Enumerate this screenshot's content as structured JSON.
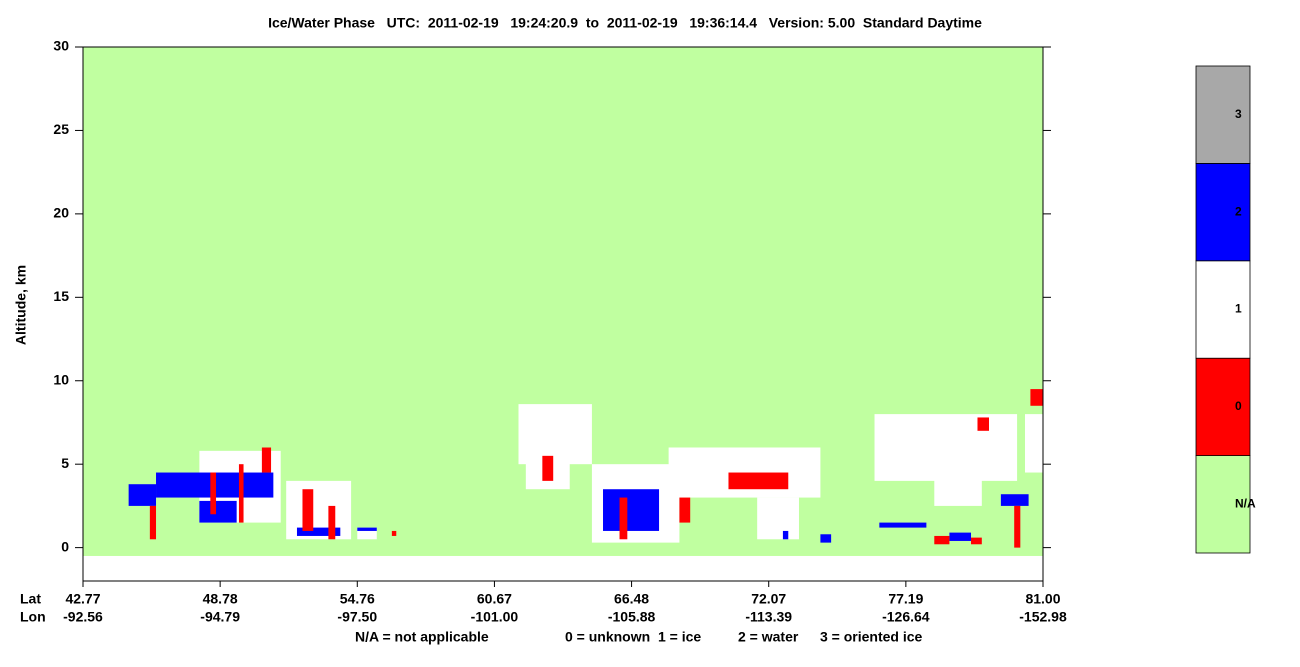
{
  "chart_data": {
    "type": "curtain",
    "title": "Ice/Water Phase   UTC:  2011-02-19   19:24:20.9  to  2011-02-19   19:36:14.4   Version: 5.00  Standard Daytime",
    "y_label": "Altitude, km",
    "ylim": [
      -2,
      30
    ],
    "yticks": [
      0,
      5,
      10,
      15,
      20,
      25,
      30
    ],
    "x_row_labels": [
      "Lat",
      "Lon"
    ],
    "x_tick_lat": [
      "42.77",
      "48.78",
      "54.76",
      "60.67",
      "66.48",
      "72.07",
      "77.19",
      "81.00"
    ],
    "x_tick_lon": [
      "-92.56",
      "-94.79",
      "-97.50",
      "-101.00",
      "-105.88",
      "-113.39",
      "-126.64",
      "-152.98"
    ],
    "na_region": {
      "bottom": -0.5,
      "top": 30
    },
    "colorbar": {
      "ticks": [
        "N/A",
        0,
        1,
        2,
        3
      ],
      "colors": [
        "#c0ffa0",
        "#ff0000",
        "#ffffff",
        "#0000ff",
        "#a8a8a8"
      ]
    },
    "legend_note": [
      "N/A = not applicable",
      "0 = unknown",
      "1 = ice",
      "2 = water",
      "3 = oriented ice"
    ],
    "features": [
      {
        "lat": [
          47.87,
          51.42
        ],
        "alt": [
          1.5,
          5.8
        ],
        "phase": 1
      },
      {
        "lat": [
          51.66,
          54.49
        ],
        "alt": [
          0.5,
          4.0
        ],
        "phase": 1
      },
      {
        "lat": [
          54.76,
          55.6
        ],
        "alt": [
          0.5,
          1.2
        ],
        "phase": 1
      },
      {
        "lat": [
          61.69,
          64.8
        ],
        "alt": [
          5.0,
          8.6
        ],
        "phase": 1
      },
      {
        "lat": [
          62.0,
          63.86
        ],
        "alt": [
          3.5,
          6.0
        ],
        "phase": 1
      },
      {
        "lat": [
          64.8,
          68.43
        ],
        "alt": [
          0.3,
          5.0
        ],
        "phase": 1
      },
      {
        "lat": [
          67.99,
          74.0
        ],
        "alt": [
          3.0,
          6.0
        ],
        "phase": 1
      },
      {
        "lat": [
          71.6,
          73.2
        ],
        "alt": [
          0.5,
          3.0
        ],
        "phase": 1
      },
      {
        "lat": [
          76.02,
          80.28
        ],
        "alt": [
          4.0,
          8.0
        ],
        "phase": 1
      },
      {
        "lat": [
          77.98,
          79.3
        ],
        "alt": [
          2.5,
          4.5
        ],
        "phase": 1
      },
      {
        "lat": [
          80.5,
          81.0
        ],
        "alt": [
          4.5,
          8.0
        ],
        "phase": 1
      },
      {
        "lat": [
          44.77,
          45.97
        ],
        "alt": [
          2.5,
          3.8
        ],
        "phase": 2
      },
      {
        "lat": [
          45.97,
          51.1
        ],
        "alt": [
          3.0,
          4.5
        ],
        "phase": 2
      },
      {
        "lat": [
          47.87,
          49.5
        ],
        "alt": [
          1.5,
          2.8
        ],
        "phase": 2
      },
      {
        "lat": [
          52.13,
          54.02
        ],
        "alt": [
          0.7,
          1.2
        ],
        "phase": 2
      },
      {
        "lat": [
          54.76,
          55.6
        ],
        "alt": [
          1.0,
          1.2
        ],
        "phase": 2
      },
      {
        "lat": [
          65.27,
          67.6
        ],
        "alt": [
          1.0,
          3.5
        ],
        "phase": 2
      },
      {
        "lat": [
          72.6,
          72.8
        ],
        "alt": [
          0.5,
          1.0
        ],
        "phase": 2
      },
      {
        "lat": [
          74.0,
          74.4
        ],
        "alt": [
          0.3,
          0.8
        ],
        "phase": 2
      },
      {
        "lat": [
          76.2,
          77.76
        ],
        "alt": [
          1.2,
          1.5
        ],
        "phase": 2
      },
      {
        "lat": [
          78.4,
          79.0
        ],
        "alt": [
          0.4,
          0.9
        ],
        "phase": 2
      },
      {
        "lat": [
          79.83,
          80.6
        ],
        "alt": [
          2.5,
          3.2
        ],
        "phase": 2
      },
      {
        "lat": [
          45.7,
          45.97
        ],
        "alt": [
          0.5,
          2.5
        ],
        "phase": 0
      },
      {
        "lat": [
          48.35,
          48.6
        ],
        "alt": [
          2.0,
          4.5
        ],
        "phase": 0
      },
      {
        "lat": [
          49.6,
          49.8
        ],
        "alt": [
          1.5,
          5.0
        ],
        "phase": 0
      },
      {
        "lat": [
          50.6,
          51.0
        ],
        "alt": [
          4.5,
          6.0
        ],
        "phase": 0
      },
      {
        "lat": [
          52.37,
          52.84
        ],
        "alt": [
          1.0,
          3.5
        ],
        "phase": 0
      },
      {
        "lat": [
          53.5,
          53.8
        ],
        "alt": [
          0.5,
          2.5
        ],
        "phase": 0
      },
      {
        "lat": [
          56.25,
          56.44
        ],
        "alt": [
          0.7,
          1.0
        ],
        "phase": 0
      },
      {
        "lat": [
          62.7,
          63.16
        ],
        "alt": [
          4.0,
          5.5
        ],
        "phase": 0
      },
      {
        "lat": [
          65.97,
          66.3
        ],
        "alt": [
          0.5,
          3.0
        ],
        "phase": 0
      },
      {
        "lat": [
          68.43,
          68.87
        ],
        "alt": [
          1.5,
          3.0
        ],
        "phase": 0
      },
      {
        "lat": [
          70.43,
          72.8
        ],
        "alt": [
          3.5,
          4.5
        ],
        "phase": 0
      },
      {
        "lat": [
          77.98,
          78.4
        ],
        "alt": [
          0.2,
          0.7
        ],
        "phase": 0
      },
      {
        "lat": [
          79.0,
          79.3
        ],
        "alt": [
          0.2,
          0.6
        ],
        "phase": 0
      },
      {
        "lat": [
          79.18,
          79.5
        ],
        "alt": [
          7.0,
          7.8
        ],
        "phase": 0
      },
      {
        "lat": [
          80.2,
          80.37
        ],
        "alt": [
          0.0,
          2.5
        ],
        "phase": 0
      },
      {
        "lat": [
          80.65,
          81.0
        ],
        "alt": [
          8.5,
          9.5
        ],
        "phase": 0
      }
    ]
  }
}
